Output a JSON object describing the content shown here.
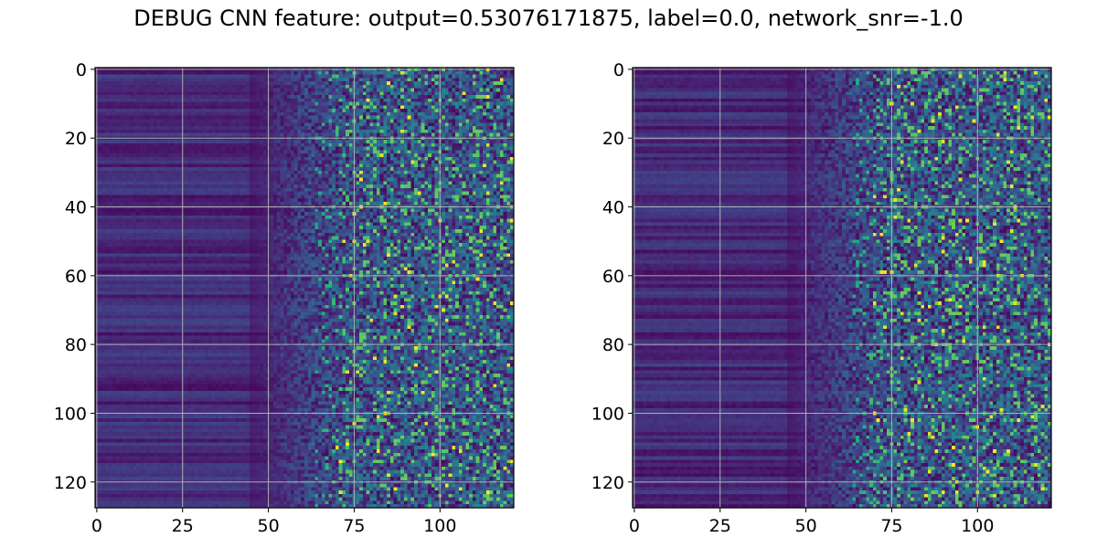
{
  "figure": {
    "title": "DEBUG CNN feature: output=0.53076171875, label=0.0, network_snr=-1.0"
  },
  "chart_data": [
    {
      "type": "heatmap",
      "colormap": "viridis",
      "grid": true,
      "rows": 128,
      "cols": 122,
      "xlim": [
        -0.5,
        121.5
      ],
      "ylim": [
        127.5,
        -0.5
      ],
      "x_ticks": [
        0,
        25,
        50,
        75,
        100
      ],
      "x_tick_labels": [
        "0",
        "25",
        "50",
        "75",
        "100"
      ],
      "y_ticks": [
        0,
        20,
        40,
        60,
        80,
        100,
        120
      ],
      "y_tick_labels": [
        "0",
        "20",
        "40",
        "60",
        "80",
        "100",
        "120"
      ],
      "pattern": "low values for columns 0-50 with horizontal row banding; noisy higher values increasing toward columns 65-121",
      "seed": 7
    },
    {
      "type": "heatmap",
      "colormap": "viridis",
      "grid": true,
      "rows": 128,
      "cols": 122,
      "xlim": [
        -0.5,
        121.5
      ],
      "ylim": [
        127.5,
        -0.5
      ],
      "x_ticks": [
        0,
        25,
        50,
        75,
        100
      ],
      "x_tick_labels": [
        "0",
        "25",
        "50",
        "75",
        "100"
      ],
      "y_ticks": [
        0,
        20,
        40,
        60,
        80,
        100,
        120
      ],
      "y_tick_labels": [
        "0",
        "20",
        "40",
        "60",
        "80",
        "100",
        "120"
      ],
      "pattern": "low values for columns 0-50 with horizontal row banding; noisy higher values increasing toward columns 70-121",
      "seed": 23
    }
  ]
}
